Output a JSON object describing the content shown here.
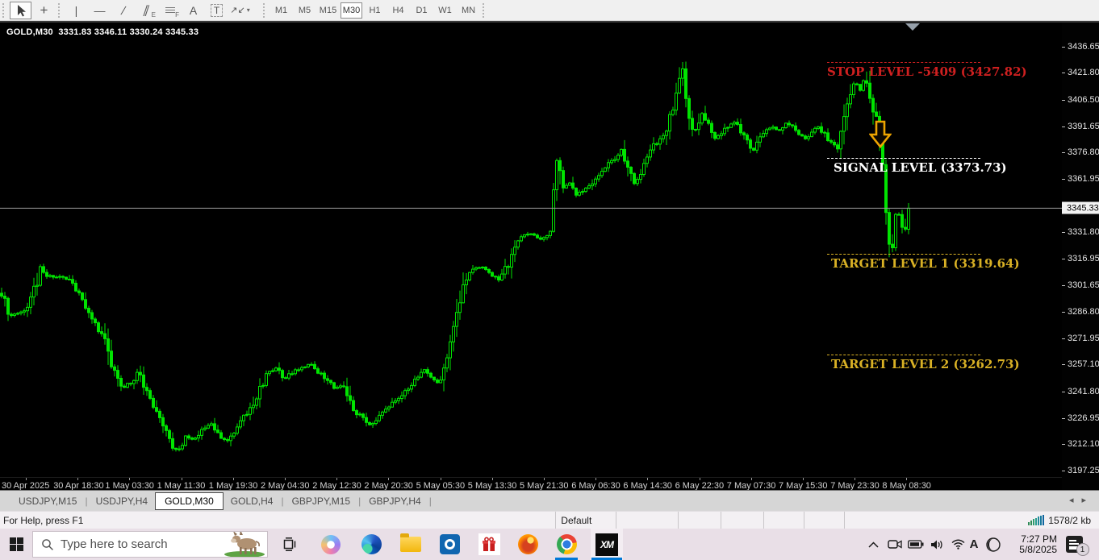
{
  "toolbar": {
    "tool_glyphs": {
      "crosshair": "+",
      "vline": "|",
      "hline": "—",
      "trend": "/",
      "channel": "∥",
      "channel_sub": "E",
      "fibo_sub": "F",
      "text": "A",
      "label": "T",
      "shapes": "↗↙",
      "caret": "▾"
    },
    "timeframes": [
      "M1",
      "M5",
      "M15",
      "M30",
      "H1",
      "H4",
      "D1",
      "W1",
      "MN"
    ],
    "active_timeframe": "M30"
  },
  "chart": {
    "symbol": "GOLD,M30",
    "ohlc": "3331.83 3346.11 3330.24 3345.33",
    "current_price": "3345.33",
    "levels": [
      {
        "id": "stop",
        "label": "STOP LEVEL -5409 (3427.82)",
        "price": 3427.82,
        "color": "#cf2020"
      },
      {
        "id": "signal",
        "label": "SIGNAL LEVEL (3373.73)",
        "price": 3373.73,
        "color": "#ffffff"
      },
      {
        "id": "target1",
        "label": "TARGET LEVEL 1 (3319.64)",
        "price": 3319.64,
        "color": "#d9b125"
      },
      {
        "id": "target2",
        "label": "TARGET LEVEL 2 (3262.73)",
        "price": 3262.73,
        "color": "#d9b125"
      }
    ],
    "price_axis": [
      "3436.65",
      "3421.80",
      "3406.50",
      "3391.65",
      "3376.80",
      "3361.95",
      "3331.80",
      "3316.95",
      "3301.65",
      "3286.80",
      "3271.95",
      "3257.10",
      "3241.80",
      "3226.95",
      "3212.10",
      "3197.25"
    ],
    "time_axis": [
      "30 Apr 2025",
      "30 Apr 18:30",
      "1 May 03:30",
      "1 May 11:30",
      "1 May 19:30",
      "2 May 04:30",
      "2 May 12:30",
      "2 May 20:30",
      "5 May 05:30",
      "5 May 13:30",
      "5 May 21:30",
      "6 May 06:30",
      "6 May 14:30",
      "6 May 22:30",
      "7 May 07:30",
      "7 May 15:30",
      "7 May 23:30",
      "8 May 08:30"
    ],
    "chart_data": {
      "type": "candlestick",
      "symbol": "GOLD",
      "timeframe": "M30",
      "price_range_visible": [
        3197.25,
        3436.65
      ],
      "last_bar_ohlc": {
        "open": 3331.83,
        "high": 3346.11,
        "low": 3330.24,
        "close": 3345.33
      },
      "anchors": [
        [
          0,
          3300.5
        ],
        [
          10,
          3284.6
        ],
        [
          30,
          3286.8
        ],
        [
          42,
          3298.2
        ],
        [
          50,
          3311.8
        ],
        [
          58,
          3307.3
        ],
        [
          75,
          3306.4
        ],
        [
          85,
          3305.0
        ],
        [
          95,
          3298.2
        ],
        [
          105,
          3291.4
        ],
        [
          118,
          3280.0
        ],
        [
          130,
          3270.9
        ],
        [
          140,
          3255.0
        ],
        [
          152,
          3243.6
        ],
        [
          165,
          3248.2
        ],
        [
          172,
          3255.0
        ],
        [
          180,
          3243.6
        ],
        [
          190,
          3234.5
        ],
        [
          200,
          3225.4
        ],
        [
          210,
          3214.1
        ],
        [
          220,
          3207.2
        ],
        [
          230,
          3216.3
        ],
        [
          240,
          3214.1
        ],
        [
          252,
          3220.9
        ],
        [
          262,
          3223.2
        ],
        [
          272,
          3216.3
        ],
        [
          282,
          3214.1
        ],
        [
          292,
          3220.9
        ],
        [
          302,
          3227.7
        ],
        [
          312,
          3232.3
        ],
        [
          322,
          3243.6
        ],
        [
          332,
          3252.7
        ],
        [
          342,
          3255.0
        ],
        [
          352,
          3248.2
        ],
        [
          362,
          3252.7
        ],
        [
          372,
          3255.0
        ],
        [
          385,
          3257.3
        ],
        [
          395,
          3252.7
        ],
        [
          405,
          3248.2
        ],
        [
          415,
          3243.6
        ],
        [
          425,
          3245.9
        ],
        [
          432,
          3239.1
        ],
        [
          440,
          3230.0
        ],
        [
          450,
          3227.7
        ],
        [
          458,
          3223.2
        ],
        [
          465,
          3225.4
        ],
        [
          475,
          3230.0
        ],
        [
          485,
          3234.5
        ],
        [
          495,
          3239.1
        ],
        [
          505,
          3243.6
        ],
        [
          515,
          3248.2
        ],
        [
          525,
          3255.0
        ],
        [
          535,
          3250.5
        ],
        [
          545,
          3245.9
        ],
        [
          555,
          3261.8
        ],
        [
          562,
          3280.0
        ],
        [
          570,
          3293.7
        ],
        [
          580,
          3307.3
        ],
        [
          590,
          3311.8
        ],
        [
          600,
          3311.8
        ],
        [
          610,
          3307.3
        ],
        [
          618,
          3305.0
        ],
        [
          628,
          3311.8
        ],
        [
          638,
          3325.5
        ],
        [
          648,
          3330.0
        ],
        [
          658,
          3330.9
        ],
        [
          668,
          3327.7
        ],
        [
          678,
          3329.1
        ],
        [
          684,
          3333.0
        ],
        [
          688,
          3376.0
        ],
        [
          698,
          3357.3
        ],
        [
          706,
          3359.6
        ],
        [
          714,
          3352.8
        ],
        [
          722,
          3355.1
        ],
        [
          730,
          3357.3
        ],
        [
          738,
          3361.0
        ],
        [
          746,
          3366.4
        ],
        [
          754,
          3371.0
        ],
        [
          762,
          3373.2
        ],
        [
          770,
          3377.8
        ],
        [
          778,
          3366.4
        ],
        [
          786,
          3359.6
        ],
        [
          794,
          3364.1
        ],
        [
          802,
          3373.2
        ],
        [
          810,
          3380.1
        ],
        [
          818,
          3384.6
        ],
        [
          826,
          3391.4
        ],
        [
          834,
          3402.8
        ],
        [
          840,
          3411.9
        ],
        [
          845,
          3427.8
        ],
        [
          850,
          3407.4
        ],
        [
          855,
          3393.7
        ],
        [
          862,
          3389.2
        ],
        [
          870,
          3398.3
        ],
        [
          878,
          3391.4
        ],
        [
          886,
          3384.6
        ],
        [
          894,
          3386.9
        ],
        [
          902,
          3391.4
        ],
        [
          910,
          3393.7
        ],
        [
          918,
          3389.2
        ],
        [
          926,
          3382.3
        ],
        [
          934,
          3377.8
        ],
        [
          942,
          3384.6
        ],
        [
          950,
          3389.2
        ],
        [
          958,
          3391.4
        ],
        [
          966,
          3389.2
        ],
        [
          974,
          3393.7
        ],
        [
          982,
          3391.4
        ],
        [
          990,
          3386.9
        ],
        [
          998,
          3384.6
        ],
        [
          1006,
          3389.2
        ],
        [
          1014,
          3391.4
        ],
        [
          1022,
          3386.9
        ],
        [
          1030,
          3382.3
        ],
        [
          1038,
          3380.1
        ],
        [
          1046,
          3393.7
        ],
        [
          1054,
          3409.6
        ],
        [
          1060,
          3416.4
        ],
        [
          1066,
          3411.9
        ],
        [
          1072,
          3418.7
        ],
        [
          1078,
          3407.4
        ],
        [
          1084,
          3398.3
        ],
        [
          1090,
          3386.9
        ],
        [
          1096,
          3357.3
        ],
        [
          1100,
          3330.0
        ],
        [
          1106,
          3325.5
        ],
        [
          1110,
          3339.1
        ],
        [
          1114,
          3341.4
        ],
        [
          1118,
          3336.8
        ],
        [
          1122,
          3332.3
        ],
        [
          1126,
          3345.3
        ]
      ]
    }
  },
  "tabs": {
    "items": [
      "USDJPY,M15",
      "USDJPY,H4",
      "GOLD,M30",
      "GOLD,H4",
      "GBPJPY,M15",
      "GBPJPY,H4"
    ],
    "active_index": 2
  },
  "status_bar": {
    "help": "For Help, press F1",
    "profile": "Default",
    "connection": "1578/2 kb"
  },
  "taskbar": {
    "search_placeholder": "Type here to search",
    "tray_language": "A",
    "clock_time": "7:27 PM",
    "clock_date": "5/8/2025",
    "notification_badge": "1"
  }
}
